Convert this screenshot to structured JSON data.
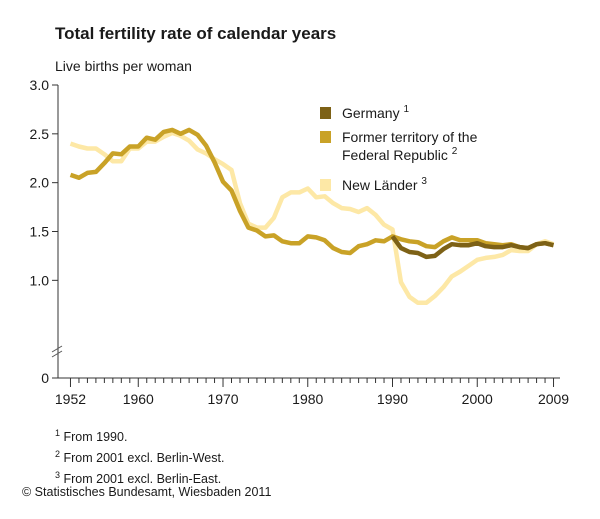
{
  "chart_data": {
    "type": "line",
    "title": "Total fertility rate of calendar years",
    "ylabel": "Live births per woman",
    "xlabel": "",
    "xlim": [
      1951,
      2010
    ],
    "ylim": [
      0,
      3.0
    ],
    "y_axis_break": true,
    "x_ticks": [
      1952,
      1960,
      1970,
      1980,
      1990,
      2000,
      2009
    ],
    "y_ticks": [
      {
        "value": 0,
        "label": "0"
      },
      {
        "value": 1.0,
        "label": "1.0"
      },
      {
        "value": 1.5,
        "label": "1.5"
      },
      {
        "value": 2.0,
        "label": "2.0"
      },
      {
        "value": 2.5,
        "label": "2.5"
      },
      {
        "value": 3.0,
        "label": "3.0"
      }
    ],
    "grid": false,
    "legend_position": "top-right",
    "series": [
      {
        "name": "New Länder",
        "footnote": "3",
        "color": "#fde8a6",
        "x": [
          1952,
          1953,
          1954,
          1955,
          1956,
          1957,
          1958,
          1959,
          1960,
          1961,
          1962,
          1963,
          1964,
          1965,
          1966,
          1967,
          1968,
          1969,
          1970,
          1971,
          1972,
          1973,
          1974,
          1975,
          1976,
          1977,
          1978,
          1979,
          1980,
          1981,
          1982,
          1983,
          1984,
          1985,
          1986,
          1987,
          1988,
          1989,
          1990,
          1991,
          1992,
          1993,
          1994,
          1995,
          1996,
          1997,
          1998,
          1999,
          2000,
          2001,
          2002,
          2003,
          2004,
          2005,
          2006,
          2007,
          2008,
          2009
        ],
        "values": [
          2.4,
          2.37,
          2.35,
          2.35,
          2.29,
          2.22,
          2.22,
          2.35,
          2.35,
          2.42,
          2.42,
          2.47,
          2.51,
          2.48,
          2.43,
          2.34,
          2.3,
          2.24,
          2.19,
          2.13,
          1.79,
          1.58,
          1.54,
          1.54,
          1.64,
          1.85,
          1.9,
          1.9,
          1.94,
          1.85,
          1.86,
          1.79,
          1.74,
          1.73,
          1.7,
          1.74,
          1.67,
          1.57,
          1.52,
          0.98,
          0.83,
          0.77,
          0.77,
          0.84,
          0.93,
          1.04,
          1.09,
          1.15,
          1.21,
          1.23,
          1.24,
          1.26,
          1.31,
          1.3,
          1.3,
          1.37,
          1.4,
          1.37
        ]
      },
      {
        "name": "Former territory of the Federal Republic",
        "name_line1": "Former territory of the",
        "name_line2": "Federal Republic",
        "footnote": "2",
        "color": "#c9a227",
        "x": [
          1952,
          1953,
          1954,
          1955,
          1956,
          1957,
          1958,
          1959,
          1960,
          1961,
          1962,
          1963,
          1964,
          1965,
          1966,
          1967,
          1968,
          1969,
          1970,
          1971,
          1972,
          1973,
          1974,
          1975,
          1976,
          1977,
          1978,
          1979,
          1980,
          1981,
          1982,
          1983,
          1984,
          1985,
          1986,
          1987,
          1988,
          1989,
          1990,
          1991,
          1992,
          1993,
          1994,
          1995,
          1996,
          1997,
          1998,
          1999,
          2000,
          2001,
          2002,
          2003,
          2004,
          2005,
          2006,
          2007,
          2008,
          2009
        ],
        "values": [
          2.08,
          2.05,
          2.1,
          2.11,
          2.2,
          2.3,
          2.29,
          2.37,
          2.37,
          2.46,
          2.44,
          2.52,
          2.54,
          2.5,
          2.54,
          2.49,
          2.38,
          2.21,
          2.01,
          1.92,
          1.71,
          1.54,
          1.51,
          1.45,
          1.46,
          1.4,
          1.38,
          1.38,
          1.45,
          1.44,
          1.41,
          1.33,
          1.29,
          1.28,
          1.35,
          1.37,
          1.41,
          1.4,
          1.45,
          1.42,
          1.4,
          1.39,
          1.35,
          1.34,
          1.4,
          1.44,
          1.41,
          1.41,
          1.41,
          1.38,
          1.37,
          1.36,
          1.37,
          1.34,
          1.33,
          1.37,
          1.38,
          1.36
        ]
      },
      {
        "name": "Germany",
        "footnote": "1",
        "color": "#7d6116",
        "x": [
          1990,
          1991,
          1992,
          1993,
          1994,
          1995,
          1996,
          1997,
          1998,
          1999,
          2000,
          2001,
          2002,
          2003,
          2004,
          2005,
          2006,
          2007,
          2008,
          2009
        ],
        "values": [
          1.45,
          1.33,
          1.29,
          1.28,
          1.24,
          1.25,
          1.32,
          1.37,
          1.36,
          1.36,
          1.38,
          1.35,
          1.34,
          1.34,
          1.36,
          1.34,
          1.33,
          1.37,
          1.38,
          1.36
        ]
      }
    ],
    "legend_order": [
      2,
      1,
      0
    ]
  },
  "footnotes": [
    {
      "mark": "1",
      "text": "From 1990."
    },
    {
      "mark": "2",
      "text": "From 2001 excl. Berlin-West."
    },
    {
      "mark": "3",
      "text": "From 2001 excl. Berlin-East."
    }
  ],
  "source": "© Statistisches Bundesamt, Wiesbaden 2011"
}
